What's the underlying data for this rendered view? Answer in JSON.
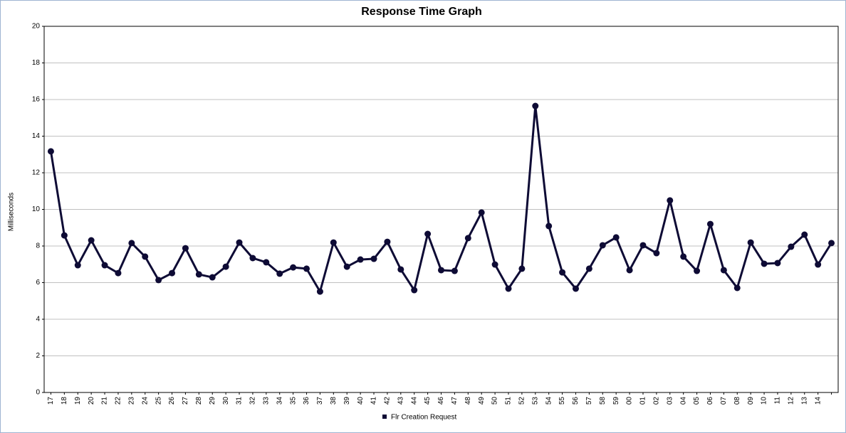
{
  "chart_data": {
    "type": "line",
    "title": "Response Time Graph",
    "y_label": "Milliseconds",
    "categories": [
      "17",
      "18",
      "19",
      "20",
      "21",
      "22",
      "23",
      "24",
      "25",
      "26",
      "27",
      "28",
      "29",
      "30",
      "31",
      "32",
      "33",
      "34",
      "35",
      "36",
      "37",
      "38",
      "39",
      "40",
      "41",
      "42",
      "43",
      "44",
      "45",
      "46",
      "47",
      "48",
      "49",
      "50",
      "51",
      "52",
      "53",
      "54",
      "55",
      "56",
      "57",
      "58",
      "59",
      "00",
      "01",
      "02",
      "03",
      "04",
      "05",
      "06",
      "07",
      "08",
      "09",
      "10",
      "11",
      "12",
      "13",
      "14",
      null
    ],
    "series": [
      {
        "name": "Flr Creation Request",
        "color": "#0e0b35",
        "values": [
          13.17,
          8.58,
          6.95,
          8.31,
          6.95,
          6.52,
          8.16,
          7.42,
          6.14,
          6.52,
          7.88,
          6.45,
          6.29,
          6.87,
          8.19,
          7.34,
          7.11,
          6.49,
          6.83,
          6.76,
          5.51,
          8.19,
          6.87,
          7.26,
          7.3,
          8.23,
          6.72,
          5.59,
          8.66,
          6.68,
          6.64,
          8.43,
          9.83,
          6.99,
          5.67,
          6.76,
          15.65,
          9.09,
          6.56,
          5.67,
          6.76,
          8.04,
          8.47,
          6.68,
          8.04,
          7.61,
          10.49,
          7.42,
          6.64,
          9.2,
          6.68,
          5.71,
          8.19,
          7.03,
          7.07,
          7.96,
          8.62,
          6.99,
          8.16
        ]
      }
    ],
    "ylim": [
      0,
      20
    ],
    "yticks": [
      0,
      2,
      4,
      6,
      8,
      10,
      12,
      14,
      16,
      18,
      20
    ],
    "grid": true,
    "legend": "bottom"
  }
}
